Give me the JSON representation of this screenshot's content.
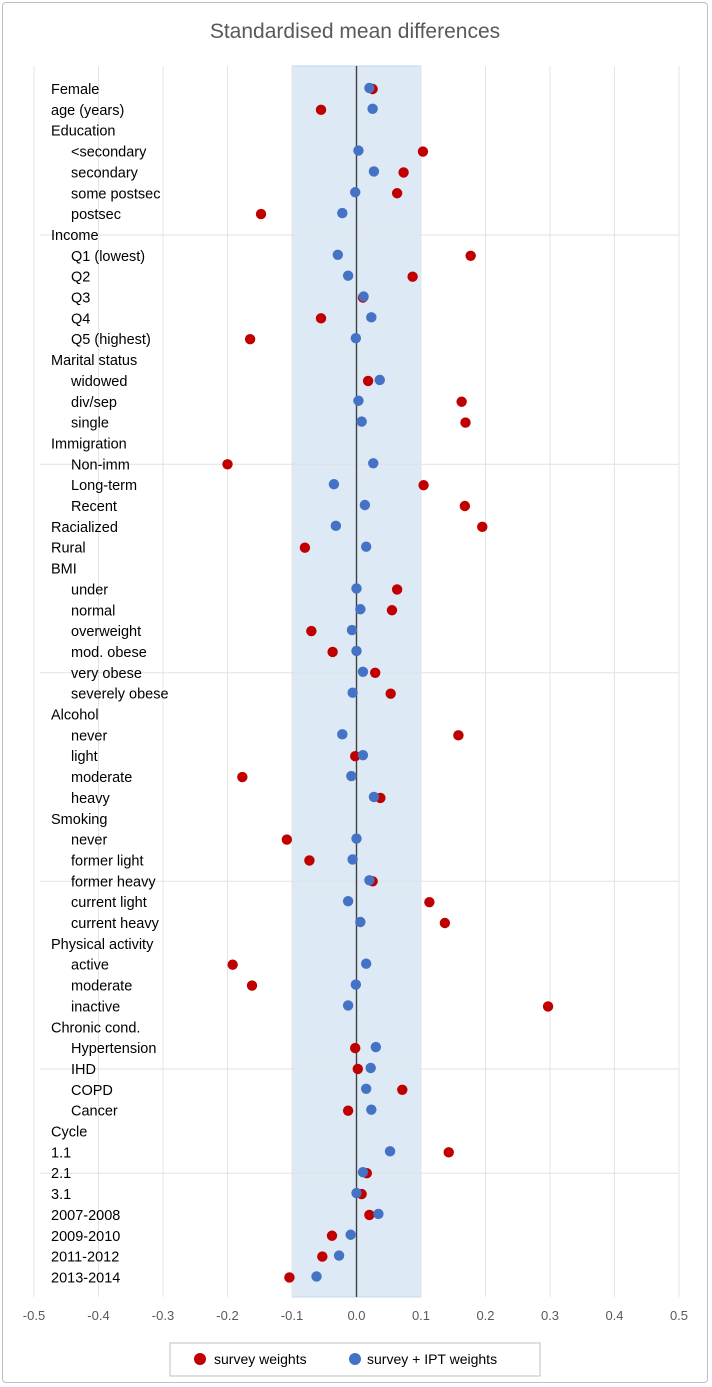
{
  "chart_data": {
    "type": "scatter",
    "title": "Standardised mean differences",
    "xlim": [
      -0.5,
      0.5
    ],
    "xticks": [
      "-0.5",
      "-0.4",
      "-0.3",
      "-0.2",
      "-0.1",
      "0.0",
      "0.1",
      "0.2",
      "0.3",
      "0.4",
      "0.5"
    ],
    "tick_values": [
      -0.5,
      -0.4,
      -0.3,
      -0.2,
      -0.1,
      0.0,
      0.1,
      0.2,
      0.3,
      0.4,
      0.5
    ],
    "shaded_band": [
      -0.1,
      0.1
    ],
    "reference_line": 0.0,
    "legend": {
      "position": "bottom"
    },
    "series": [
      {
        "name": "survey weights",
        "color": "#c00000"
      },
      {
        "name": "survey + IPT weights",
        "color": "#4472c4"
      }
    ],
    "group_separators_after_row": [
      7,
      18,
      28,
      38,
      47,
      52
    ],
    "rows": [
      {
        "label": "Female",
        "indent": 0,
        "sw": 0.025,
        "ipt": 0.02
      },
      {
        "label": "age (years)",
        "indent": 0,
        "sw": -0.055,
        "ipt": 0.025
      },
      {
        "label": "Education",
        "indent": 0,
        "sw": null,
        "ipt": null
      },
      {
        "label": "<secondary",
        "indent": 1,
        "sw": 0.103,
        "ipt": 0.003
      },
      {
        "label": "secondary",
        "indent": 1,
        "sw": 0.073,
        "ipt": 0.027
      },
      {
        "label": "some postsec",
        "indent": 1,
        "sw": 0.063,
        "ipt": -0.002
      },
      {
        "label": "postsec",
        "indent": 1,
        "sw": -0.148,
        "ipt": -0.022
      },
      {
        "label": "Income",
        "indent": 0,
        "sw": null,
        "ipt": null
      },
      {
        "label": "Q1 (lowest)",
        "indent": 1,
        "sw": 0.177,
        "ipt": -0.029
      },
      {
        "label": "Q2",
        "indent": 1,
        "sw": 0.087,
        "ipt": -0.013
      },
      {
        "label": "Q3",
        "indent": 1,
        "sw": 0.01,
        "ipt": 0.011
      },
      {
        "label": "Q4",
        "indent": 1,
        "sw": -0.055,
        "ipt": 0.023
      },
      {
        "label": "Q5 (highest)",
        "indent": 1,
        "sw": -0.165,
        "ipt": -0.001
      },
      {
        "label": "Marital status",
        "indent": 0,
        "sw": null,
        "ipt": null
      },
      {
        "label": "widowed",
        "indent": 1,
        "sw": 0.018,
        "ipt": 0.036
      },
      {
        "label": "div/sep",
        "indent": 1,
        "sw": 0.163,
        "ipt": 0.003
      },
      {
        "label": "single",
        "indent": 1,
        "sw": 0.169,
        "ipt": 0.008
      },
      {
        "label": "Immigration",
        "indent": 0,
        "sw": null,
        "ipt": null
      },
      {
        "label": "Non-imm",
        "indent": 1,
        "sw": -0.2,
        "ipt": 0.026
      },
      {
        "label": "Long-term",
        "indent": 1,
        "sw": 0.104,
        "ipt": -0.035
      },
      {
        "label": "Recent",
        "indent": 1,
        "sw": 0.168,
        "ipt": 0.013
      },
      {
        "label": "Racialized",
        "indent": 0,
        "sw": 0.195,
        "ipt": -0.032
      },
      {
        "label": "Rural",
        "indent": 0,
        "sw": -0.08,
        "ipt": 0.015
      },
      {
        "label": "BMI",
        "indent": 0,
        "sw": null,
        "ipt": null
      },
      {
        "label": "under",
        "indent": 1,
        "sw": 0.063,
        "ipt": 0.0
      },
      {
        "label": "normal",
        "indent": 1,
        "sw": 0.055,
        "ipt": 0.006
      },
      {
        "label": "overweight",
        "indent": 1,
        "sw": -0.07,
        "ipt": -0.007
      },
      {
        "label": "mod. obese",
        "indent": 1,
        "sw": -0.037,
        "ipt": 0.0
      },
      {
        "label": "very obese",
        "indent": 1,
        "sw": 0.029,
        "ipt": 0.01
      },
      {
        "label": "severely obese",
        "indent": 1,
        "sw": 0.053,
        "ipt": -0.006
      },
      {
        "label": "Alcohol",
        "indent": 0,
        "sw": null,
        "ipt": null
      },
      {
        "label": "never",
        "indent": 1,
        "sw": 0.158,
        "ipt": -0.022
      },
      {
        "label": "light",
        "indent": 1,
        "sw": -0.002,
        "ipt": 0.01
      },
      {
        "label": "moderate",
        "indent": 1,
        "sw": -0.177,
        "ipt": -0.008
      },
      {
        "label": "heavy",
        "indent": 1,
        "sw": 0.037,
        "ipt": 0.027
      },
      {
        "label": "Smoking",
        "indent": 0,
        "sw": null,
        "ipt": null
      },
      {
        "label": "never",
        "indent": 1,
        "sw": -0.108,
        "ipt": 0.0
      },
      {
        "label": "former light",
        "indent": 1,
        "sw": -0.073,
        "ipt": -0.006
      },
      {
        "label": "former heavy",
        "indent": 1,
        "sw": 0.025,
        "ipt": 0.02
      },
      {
        "label": "current light",
        "indent": 1,
        "sw": 0.113,
        "ipt": -0.013
      },
      {
        "label": "current heavy",
        "indent": 1,
        "sw": 0.137,
        "ipt": 0.006
      },
      {
        "label": "Physical activity",
        "indent": 0,
        "sw": null,
        "ipt": null
      },
      {
        "label": "active",
        "indent": 1,
        "sw": -0.192,
        "ipt": 0.015
      },
      {
        "label": "moderate",
        "indent": 1,
        "sw": -0.162,
        "ipt": -0.001
      },
      {
        "label": "inactive",
        "indent": 1,
        "sw": 0.297,
        "ipt": -0.013
      },
      {
        "label": "Chronic cond.",
        "indent": 0,
        "sw": null,
        "ipt": null
      },
      {
        "label": "Hypertension",
        "indent": 1,
        "sw": -0.002,
        "ipt": 0.03
      },
      {
        "label": "IHD",
        "indent": 1,
        "sw": 0.002,
        "ipt": 0.022
      },
      {
        "label": "COPD",
        "indent": 1,
        "sw": 0.071,
        "ipt": 0.015
      },
      {
        "label": "Cancer",
        "indent": 1,
        "sw": -0.013,
        "ipt": 0.023
      },
      {
        "label": "Cycle",
        "indent": 0,
        "sw": null,
        "ipt": null
      },
      {
        "label": "1.1",
        "indent": 0,
        "sw": 0.143,
        "ipt": 0.052
      },
      {
        "label": "2.1",
        "indent": 0,
        "sw": 0.016,
        "ipt": 0.01
      },
      {
        "label": "3.1",
        "indent": 0,
        "sw": 0.008,
        "ipt": 0.0
      },
      {
        "label": "2007-2008",
        "indent": 0,
        "sw": 0.02,
        "ipt": 0.034
      },
      {
        "label": "2009-2010",
        "indent": 0,
        "sw": -0.038,
        "ipt": -0.009
      },
      {
        "label": "2011-2012",
        "indent": 0,
        "sw": -0.053,
        "ipt": -0.027
      },
      {
        "label": "2013-2014",
        "indent": 0,
        "sw": -0.104,
        "ipt": -0.062
      }
    ]
  }
}
